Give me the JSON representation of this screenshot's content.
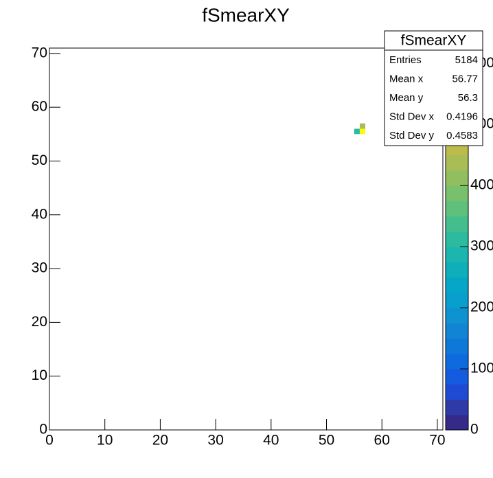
{
  "chart_data": {
    "type": "heatmap",
    "title": "fSmearXY",
    "x": [
      55,
      56,
      56
    ],
    "y": [
      55,
      55,
      56
    ],
    "values": [
      310,
      620,
      440
    ],
    "bin_width": 1,
    "xlim": [
      0,
      71
    ],
    "xticks": [
      0,
      10,
      20,
      30,
      40,
      50,
      60,
      70
    ],
    "ylim": [
      0,
      71
    ],
    "yticks": [
      0,
      10,
      20,
      30,
      40,
      50,
      60,
      70
    ],
    "zlim": [
      0,
      625
    ],
    "zticks": [
      0,
      100,
      200,
      300,
      400,
      500,
      600
    ],
    "palette": [
      "#352a87",
      "#2e3aa8",
      "#1f4ad4",
      "#145be0",
      "#0f6ae0",
      "#0d78d8",
      "#1185d4",
      "#0f92d0",
      "#089ecd",
      "#06a7c6",
      "#0eafbb",
      "#1db6ae",
      "#2cbb9f",
      "#45be8e",
      "#5fc07c",
      "#78c06c",
      "#91bf5f",
      "#a8bd55",
      "#bdbb4c",
      "#d1b944",
      "#e2b83c",
      "#f2bd34",
      "#f9cb2c",
      "#f7df22",
      "#f9fb0e"
    ],
    "stats": {
      "title": "fSmearXY",
      "labels": [
        "Entries",
        "Mean x",
        "Mean y",
        "Std Dev x",
        "Std Dev y"
      ],
      "values": [
        5184,
        56.77,
        56.3,
        0.4196,
        0.4583
      ]
    }
  }
}
